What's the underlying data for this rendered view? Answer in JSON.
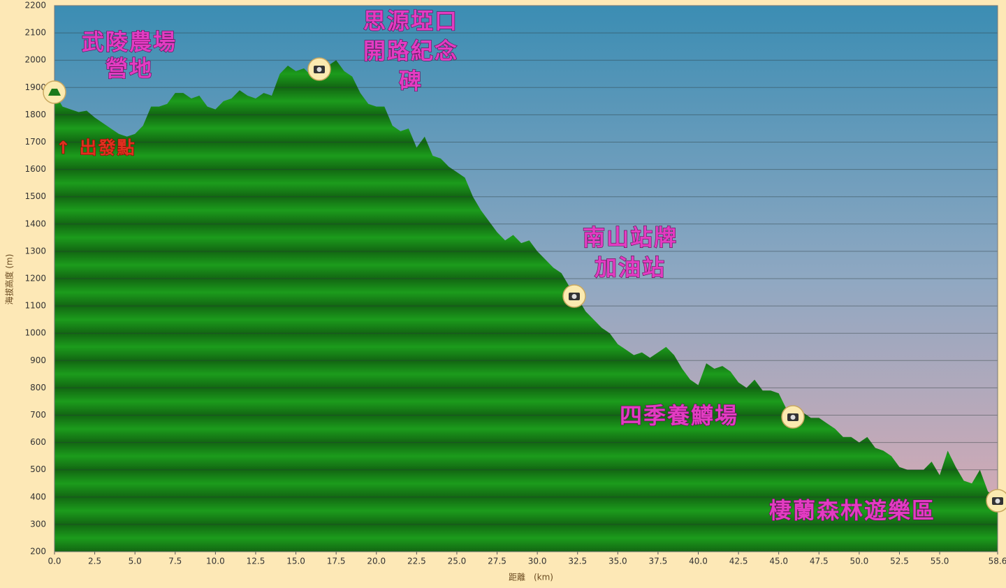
{
  "chart_data": {
    "type": "area",
    "x": [
      0,
      0.5,
      1,
      1.5,
      2,
      2.5,
      3,
      3.5,
      4,
      4.5,
      5,
      5.5,
      6,
      6.5,
      7,
      7.5,
      8,
      8.5,
      9,
      9.5,
      10,
      10.5,
      11,
      11.5,
      12,
      12.5,
      13,
      13.5,
      14,
      14.5,
      15,
      15.5,
      16,
      16.5,
      17,
      17.5,
      18,
      18.5,
      19,
      19.5,
      20,
      20.5,
      21,
      21.5,
      22,
      22.5,
      23,
      23.5,
      24,
      24.5,
      25,
      25.5,
      26,
      26.5,
      27,
      27.5,
      28,
      28.5,
      29,
      29.5,
      30,
      30.5,
      31,
      31.5,
      32,
      32.5,
      33,
      33.5,
      34,
      34.5,
      35,
      35.5,
      36,
      36.5,
      37,
      37.5,
      38,
      38.5,
      39,
      39.5,
      40,
      40.5,
      41,
      41.5,
      42,
      42.5,
      43,
      43.5,
      44,
      44.5,
      45,
      45.5,
      46,
      46.5,
      47,
      47.5,
      48,
      48.5,
      49,
      49.5,
      50,
      50.5,
      51,
      51.5,
      52,
      52.5,
      53,
      53.5,
      54,
      54.5,
      55,
      55.5,
      56,
      56.5,
      57,
      57.5,
      58,
      58.6
    ],
    "values": [
      1880,
      1830,
      1820,
      1810,
      1815,
      1790,
      1770,
      1750,
      1730,
      1720,
      1730,
      1760,
      1830,
      1830,
      1840,
      1880,
      1880,
      1860,
      1870,
      1830,
      1820,
      1850,
      1860,
      1890,
      1870,
      1860,
      1880,
      1870,
      1950,
      1980,
      1960,
      1970,
      1940,
      1960,
      1980,
      2000,
      1960,
      1940,
      1880,
      1840,
      1830,
      1830,
      1760,
      1740,
      1750,
      1680,
      1720,
      1650,
      1640,
      1610,
      1590,
      1570,
      1500,
      1450,
      1410,
      1370,
      1340,
      1360,
      1330,
      1340,
      1300,
      1270,
      1240,
      1220,
      1170,
      1130,
      1080,
      1050,
      1020,
      1000,
      960,
      940,
      920,
      930,
      910,
      930,
      950,
      920,
      870,
      830,
      810,
      890,
      870,
      880,
      860,
      820,
      800,
      830,
      790,
      790,
      780,
      720,
      700,
      710,
      690,
      690,
      670,
      650,
      620,
      620,
      600,
      620,
      580,
      570,
      550,
      510,
      500,
      500,
      500,
      530,
      480,
      570,
      510,
      460,
      450,
      500,
      420,
      400
    ],
    "color": "#1c9c1c",
    "xlabel": "距離　(km)",
    "ylabel": "海拔高度 (m)",
    "xlim": [
      0,
      58.6
    ],
    "ylim": [
      200,
      2200
    ],
    "xticks": [
      {
        "value": 0,
        "label": "0.0"
      },
      2.5,
      {
        "value": 5,
        "label": "5.0"
      },
      7.5,
      {
        "value": 10,
        "label": "10.0"
      },
      12.5,
      {
        "value": 15,
        "label": "15.0"
      },
      17.5,
      {
        "value": 20,
        "label": "20.0"
      },
      22.5,
      {
        "value": 25,
        "label": "25.0"
      },
      27.5,
      {
        "value": 30,
        "label": "30.0"
      },
      32.5,
      {
        "value": 35,
        "label": "35.0"
      },
      37.5,
      {
        "value": 40,
        "label": "40.0"
      },
      42.5,
      {
        "value": 45,
        "label": "45.0"
      },
      47.5,
      {
        "value": 50,
        "label": "50.0"
      },
      52.5,
      {
        "value": 55,
        "label": "55.0"
      },
      58.6
    ],
    "yticks": [
      200,
      300,
      400,
      500,
      600,
      700,
      800,
      900,
      1000,
      1100,
      1200,
      1300,
      1400,
      1500,
      1600,
      1700,
      1800,
      1900,
      2000,
      2100,
      2200
    ],
    "grid": true,
    "annotations": [
      [
        "武陵農場",
        "營地"
      ],
      [
        "思源埡口",
        "開路紀念",
        "碑"
      ],
      [
        "↑ 出發點"
      ],
      [
        "南山站牌",
        "加油站"
      ],
      [
        "四季養鱒場"
      ],
      [
        "棲蘭森林遊樂區"
      ]
    ]
  }
}
